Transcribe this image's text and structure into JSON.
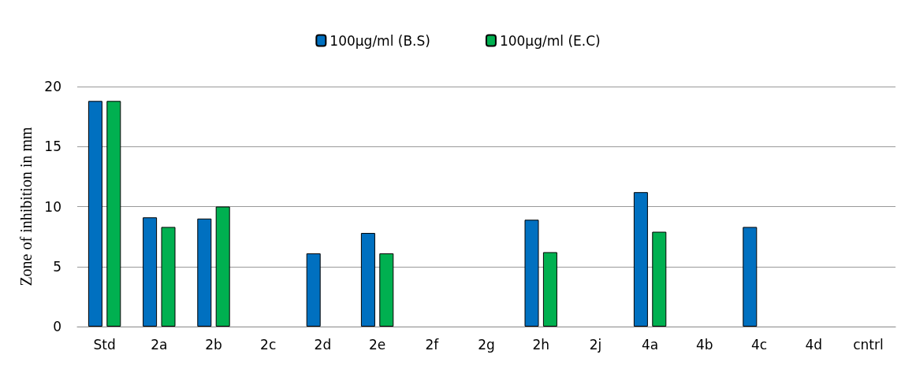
{
  "chart_data": {
    "type": "bar",
    "ylabel": "Zone of inhibition in mm",
    "categories": [
      "Std",
      "2a",
      "2b",
      "2c",
      "2d",
      "2e",
      "2f",
      "2g",
      "2h",
      "2j",
      "4a",
      "4b",
      "4c",
      "4d",
      "cntrl"
    ],
    "series": [
      {
        "name": "100µg/ml (B.S)",
        "color": "#0070c0",
        "values": [
          18.8,
          9.1,
          9.0,
          null,
          6.1,
          7.8,
          null,
          null,
          8.9,
          null,
          11.2,
          null,
          8.3,
          null,
          null
        ]
      },
      {
        "name": "100µg/ml (E.C)",
        "color": "#00b050",
        "values": [
          18.8,
          8.3,
          10.0,
          null,
          null,
          6.1,
          null,
          null,
          6.2,
          null,
          7.9,
          null,
          null,
          null,
          null
        ]
      }
    ],
    "ylim": [
      0,
      20
    ],
    "yticks": [
      0,
      5,
      10,
      15,
      20
    ],
    "grid": "y",
    "legend": "top"
  }
}
